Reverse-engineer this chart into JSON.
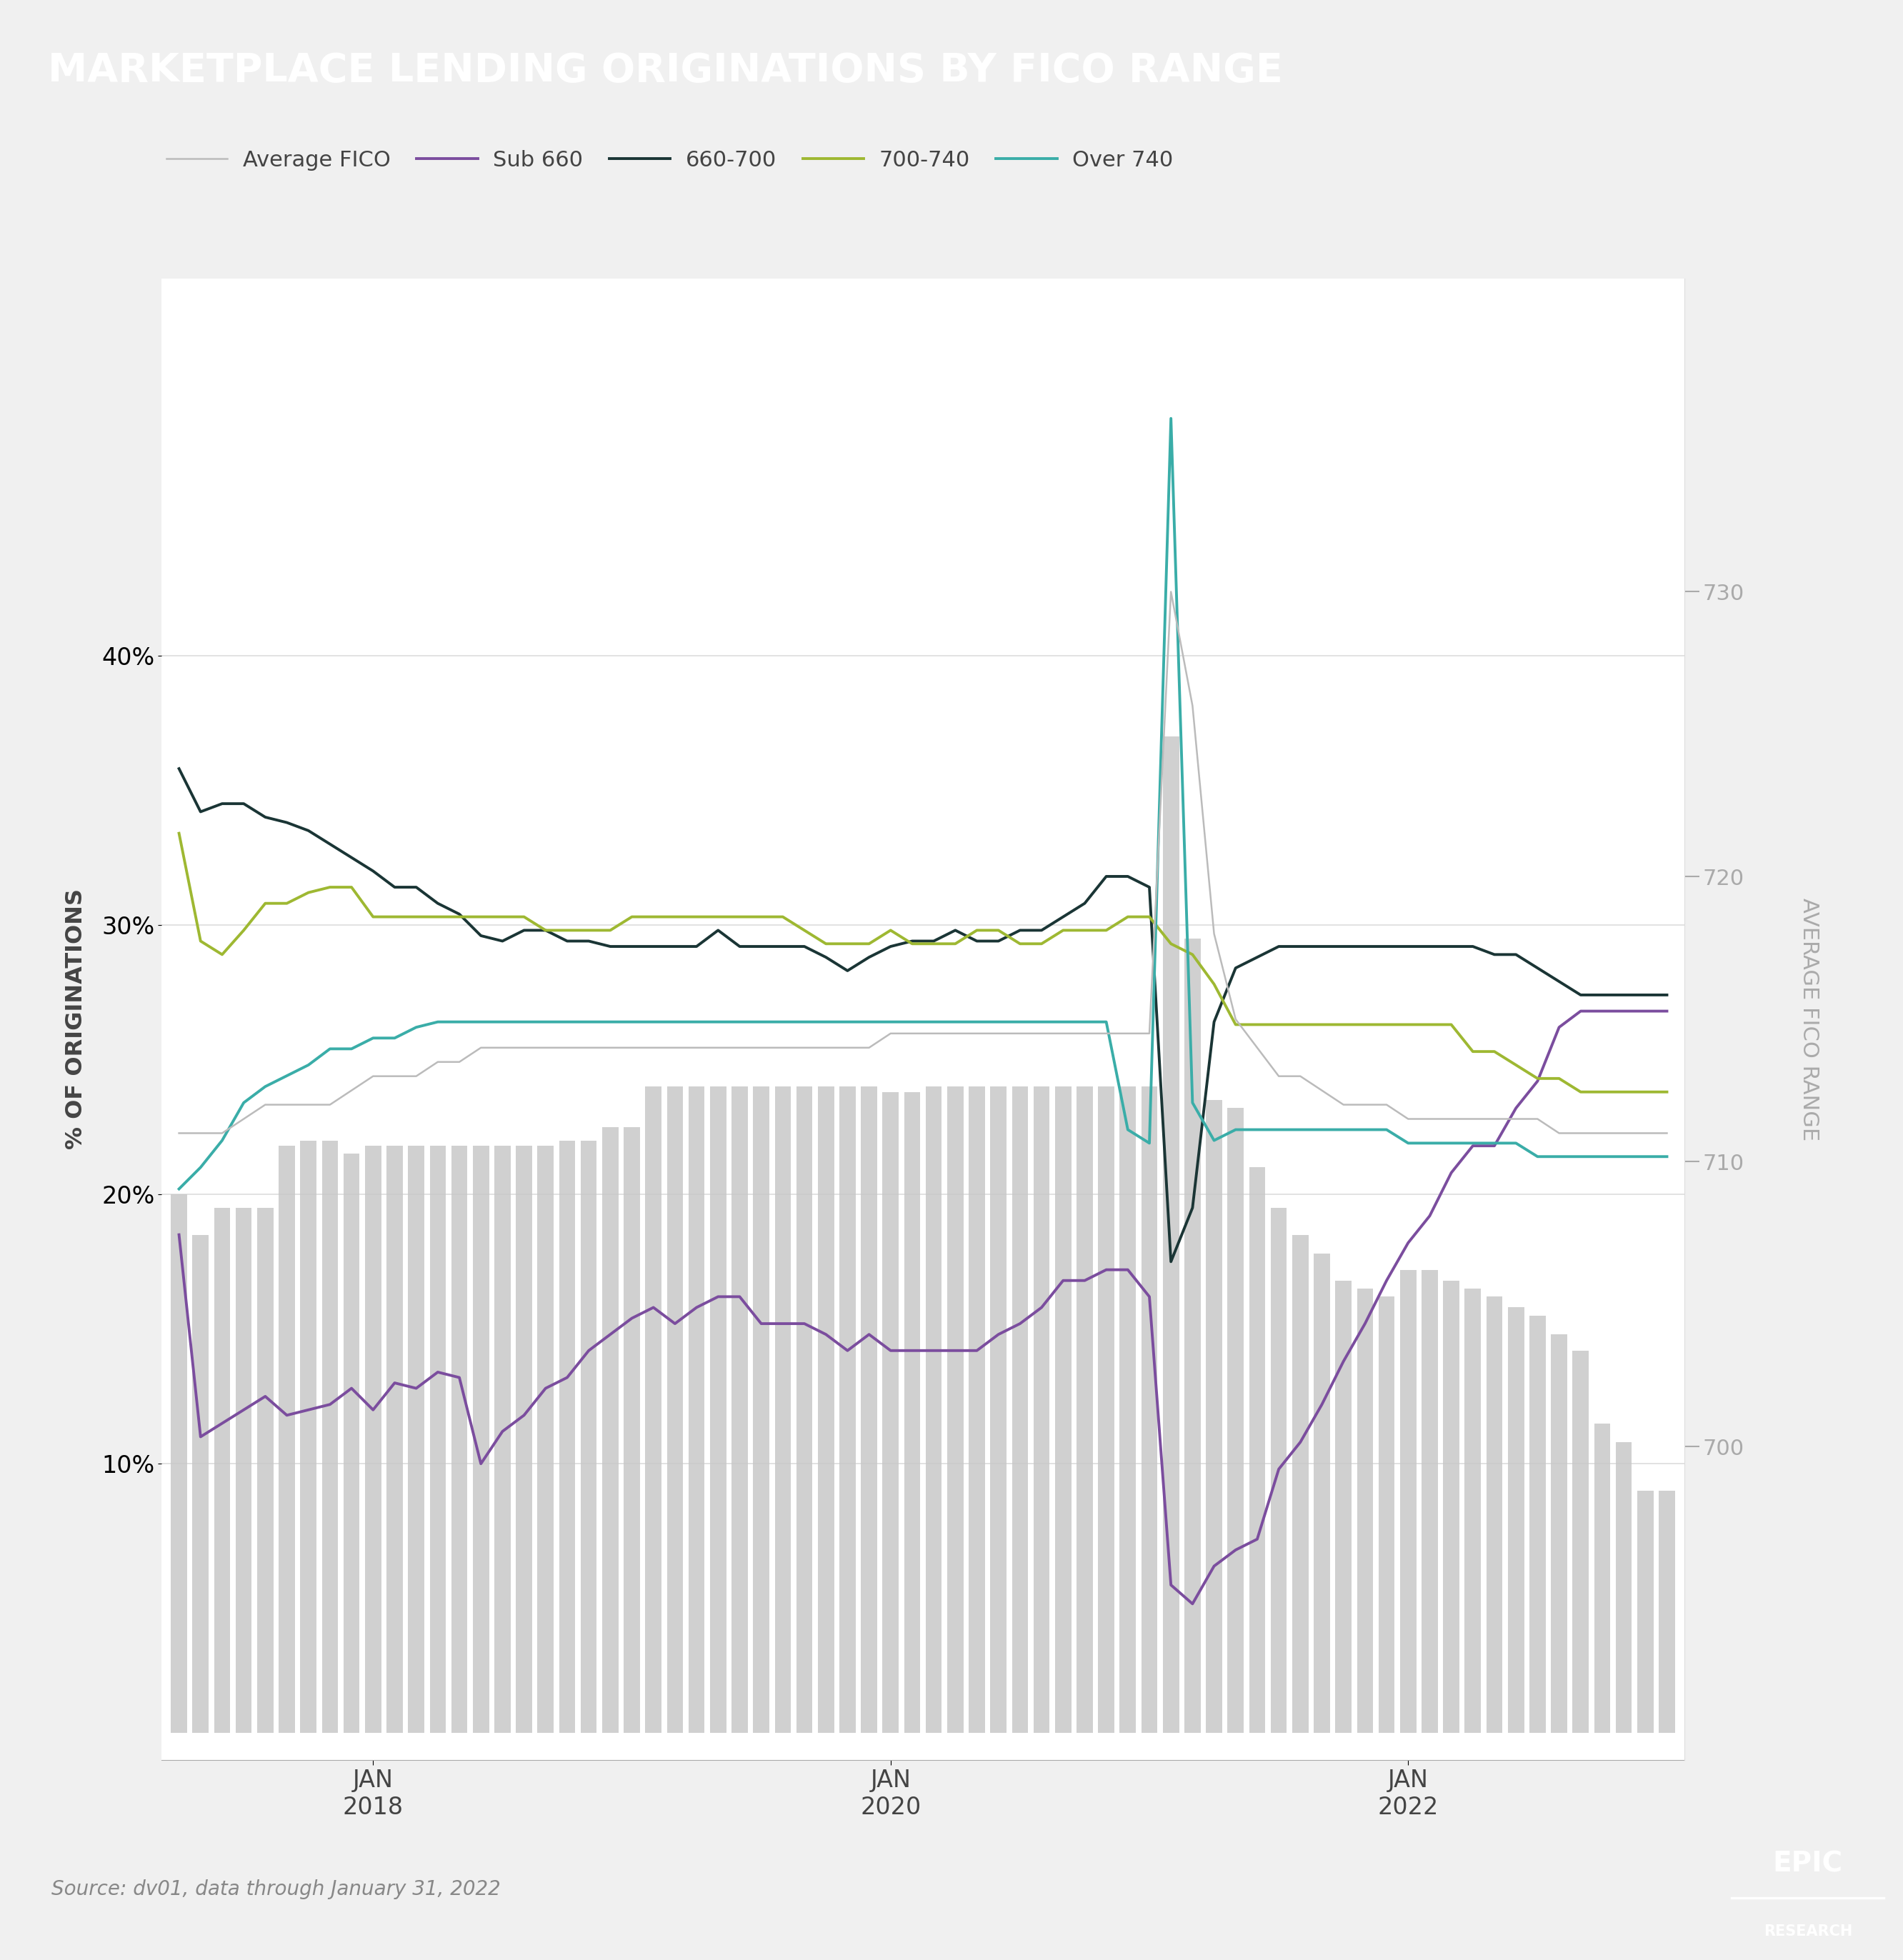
{
  "title": "MARKETPLACE LENDING ORIGINATIONS BY FICO RANGE",
  "title_bg_color": "#3aada8",
  "title_text_color": "#ffffff",
  "source_text": "Source: dv01, data through January 31, 2022",
  "footer_bg_color": "#e6e6e6",
  "epic_bg_color": "#6b8a3e",
  "chart_bg_color": "#ffffff",
  "legend_items": [
    "Average FICO",
    "Sub 660",
    "660-700",
    "700-740",
    "Over 740"
  ],
  "legend_colors": [
    "#bbbbbb",
    "#7b4d9e",
    "#1a3535",
    "#9eb832",
    "#3aada8"
  ],
  "ylabel_left": "% OF ORIGINATIONS",
  "ylabel_right": "AVERAGE FICO RANGE",
  "right_yticks": [
    700,
    710,
    720,
    730
  ],
  "right_ylim": [
    689,
    741
  ],
  "left_yticks": [
    0.1,
    0.2,
    0.3,
    0.4
  ],
  "left_ylim": [
    -0.01,
    0.54
  ],
  "bar_color": "#c8c8c8",
  "n_months": 70,
  "avg_fico": [
    711.0,
    711.0,
    711.0,
    711.5,
    712.0,
    712.0,
    712.0,
    712.0,
    712.5,
    713.0,
    713.0,
    713.0,
    713.5,
    713.5,
    714.0,
    714.0,
    714.0,
    714.0,
    714.0,
    714.0,
    714.0,
    714.0,
    714.0,
    714.0,
    714.0,
    714.0,
    714.0,
    714.0,
    714.0,
    714.0,
    714.0,
    714.0,
    714.0,
    714.5,
    714.5,
    714.5,
    714.5,
    714.5,
    714.5,
    714.5,
    714.5,
    714.5,
    714.5,
    714.5,
    714.5,
    714.5,
    730.0,
    726.0,
    718.0,
    715.0,
    714.0,
    713.0,
    713.0,
    712.5,
    712.0,
    712.0,
    712.0,
    711.5,
    711.5,
    711.5,
    711.5,
    711.5,
    711.5,
    711.5,
    711.0,
    711.0,
    711.0,
    711.0,
    711.0,
    711.0
  ],
  "sub660": [
    0.185,
    0.11,
    0.115,
    0.12,
    0.125,
    0.118,
    0.12,
    0.122,
    0.128,
    0.12,
    0.13,
    0.128,
    0.134,
    0.132,
    0.1,
    0.112,
    0.118,
    0.128,
    0.132,
    0.142,
    0.148,
    0.154,
    0.158,
    0.152,
    0.158,
    0.162,
    0.162,
    0.152,
    0.152,
    0.152,
    0.148,
    0.142,
    0.148,
    0.142,
    0.142,
    0.142,
    0.142,
    0.142,
    0.148,
    0.152,
    0.158,
    0.168,
    0.168,
    0.172,
    0.172,
    0.162,
    0.055,
    0.048,
    0.062,
    0.068,
    0.072,
    0.098,
    0.108,
    0.122,
    0.138,
    0.152,
    0.168,
    0.182,
    0.192,
    0.208,
    0.218,
    0.218,
    0.232,
    0.242,
    0.262,
    0.268,
    0.268,
    0.268,
    0.268,
    0.268
  ],
  "range_660_700": [
    0.358,
    0.342,
    0.345,
    0.345,
    0.34,
    0.338,
    0.335,
    0.33,
    0.325,
    0.32,
    0.314,
    0.314,
    0.308,
    0.304,
    0.296,
    0.294,
    0.298,
    0.298,
    0.294,
    0.294,
    0.292,
    0.292,
    0.292,
    0.292,
    0.292,
    0.298,
    0.292,
    0.292,
    0.292,
    0.292,
    0.288,
    0.283,
    0.288,
    0.292,
    0.294,
    0.294,
    0.298,
    0.294,
    0.294,
    0.298,
    0.298,
    0.303,
    0.308,
    0.318,
    0.318,
    0.314,
    0.175,
    0.195,
    0.264,
    0.284,
    0.288,
    0.292,
    0.292,
    0.292,
    0.292,
    0.292,
    0.292,
    0.292,
    0.292,
    0.292,
    0.292,
    0.289,
    0.289,
    0.284,
    0.279,
    0.274,
    0.274,
    0.274,
    0.274,
    0.274
  ],
  "range_700_740": [
    0.334,
    0.294,
    0.289,
    0.298,
    0.308,
    0.308,
    0.312,
    0.314,
    0.314,
    0.303,
    0.303,
    0.303,
    0.303,
    0.303,
    0.303,
    0.303,
    0.303,
    0.298,
    0.298,
    0.298,
    0.298,
    0.303,
    0.303,
    0.303,
    0.303,
    0.303,
    0.303,
    0.303,
    0.303,
    0.298,
    0.293,
    0.293,
    0.293,
    0.298,
    0.293,
    0.293,
    0.293,
    0.298,
    0.298,
    0.293,
    0.293,
    0.298,
    0.298,
    0.298,
    0.303,
    0.303,
    0.293,
    0.289,
    0.278,
    0.263,
    0.263,
    0.263,
    0.263,
    0.263,
    0.263,
    0.263,
    0.263,
    0.263,
    0.263,
    0.263,
    0.253,
    0.253,
    0.248,
    0.243,
    0.243,
    0.238,
    0.238,
    0.238,
    0.238,
    0.238
  ],
  "over_740": [
    0.202,
    0.21,
    0.22,
    0.234,
    0.24,
    0.244,
    0.248,
    0.254,
    0.254,
    0.258,
    0.258,
    0.262,
    0.264,
    0.264,
    0.264,
    0.264,
    0.264,
    0.264,
    0.264,
    0.264,
    0.264,
    0.264,
    0.264,
    0.264,
    0.264,
    0.264,
    0.264,
    0.264,
    0.264,
    0.264,
    0.264,
    0.264,
    0.264,
    0.264,
    0.264,
    0.264,
    0.264,
    0.264,
    0.264,
    0.264,
    0.264,
    0.264,
    0.264,
    0.264,
    0.224,
    0.219,
    0.488,
    0.234,
    0.22,
    0.224,
    0.224,
    0.224,
    0.224,
    0.224,
    0.224,
    0.224,
    0.224,
    0.219,
    0.219,
    0.219,
    0.219,
    0.219,
    0.219,
    0.214,
    0.214,
    0.214,
    0.214,
    0.214,
    0.214,
    0.214
  ],
  "bar_heights": [
    0.2,
    0.185,
    0.195,
    0.195,
    0.195,
    0.218,
    0.22,
    0.22,
    0.215,
    0.218,
    0.218,
    0.218,
    0.218,
    0.218,
    0.218,
    0.218,
    0.218,
    0.218,
    0.22,
    0.22,
    0.225,
    0.225,
    0.24,
    0.24,
    0.24,
    0.24,
    0.24,
    0.24,
    0.24,
    0.24,
    0.24,
    0.24,
    0.24,
    0.238,
    0.238,
    0.24,
    0.24,
    0.24,
    0.24,
    0.24,
    0.24,
    0.24,
    0.24,
    0.24,
    0.24,
    0.24,
    0.37,
    0.295,
    0.235,
    0.232,
    0.21,
    0.195,
    0.185,
    0.178,
    0.168,
    0.165,
    0.162,
    0.172,
    0.172,
    0.168,
    0.165,
    0.162,
    0.158,
    0.155,
    0.148,
    0.142,
    0.115,
    0.108,
    0.09,
    0.09
  ],
  "xtick_positions": [
    9,
    33,
    57
  ],
  "xtick_labels": [
    "JAN\n2018",
    "JAN\n2020",
    "JAN\n2022"
  ]
}
